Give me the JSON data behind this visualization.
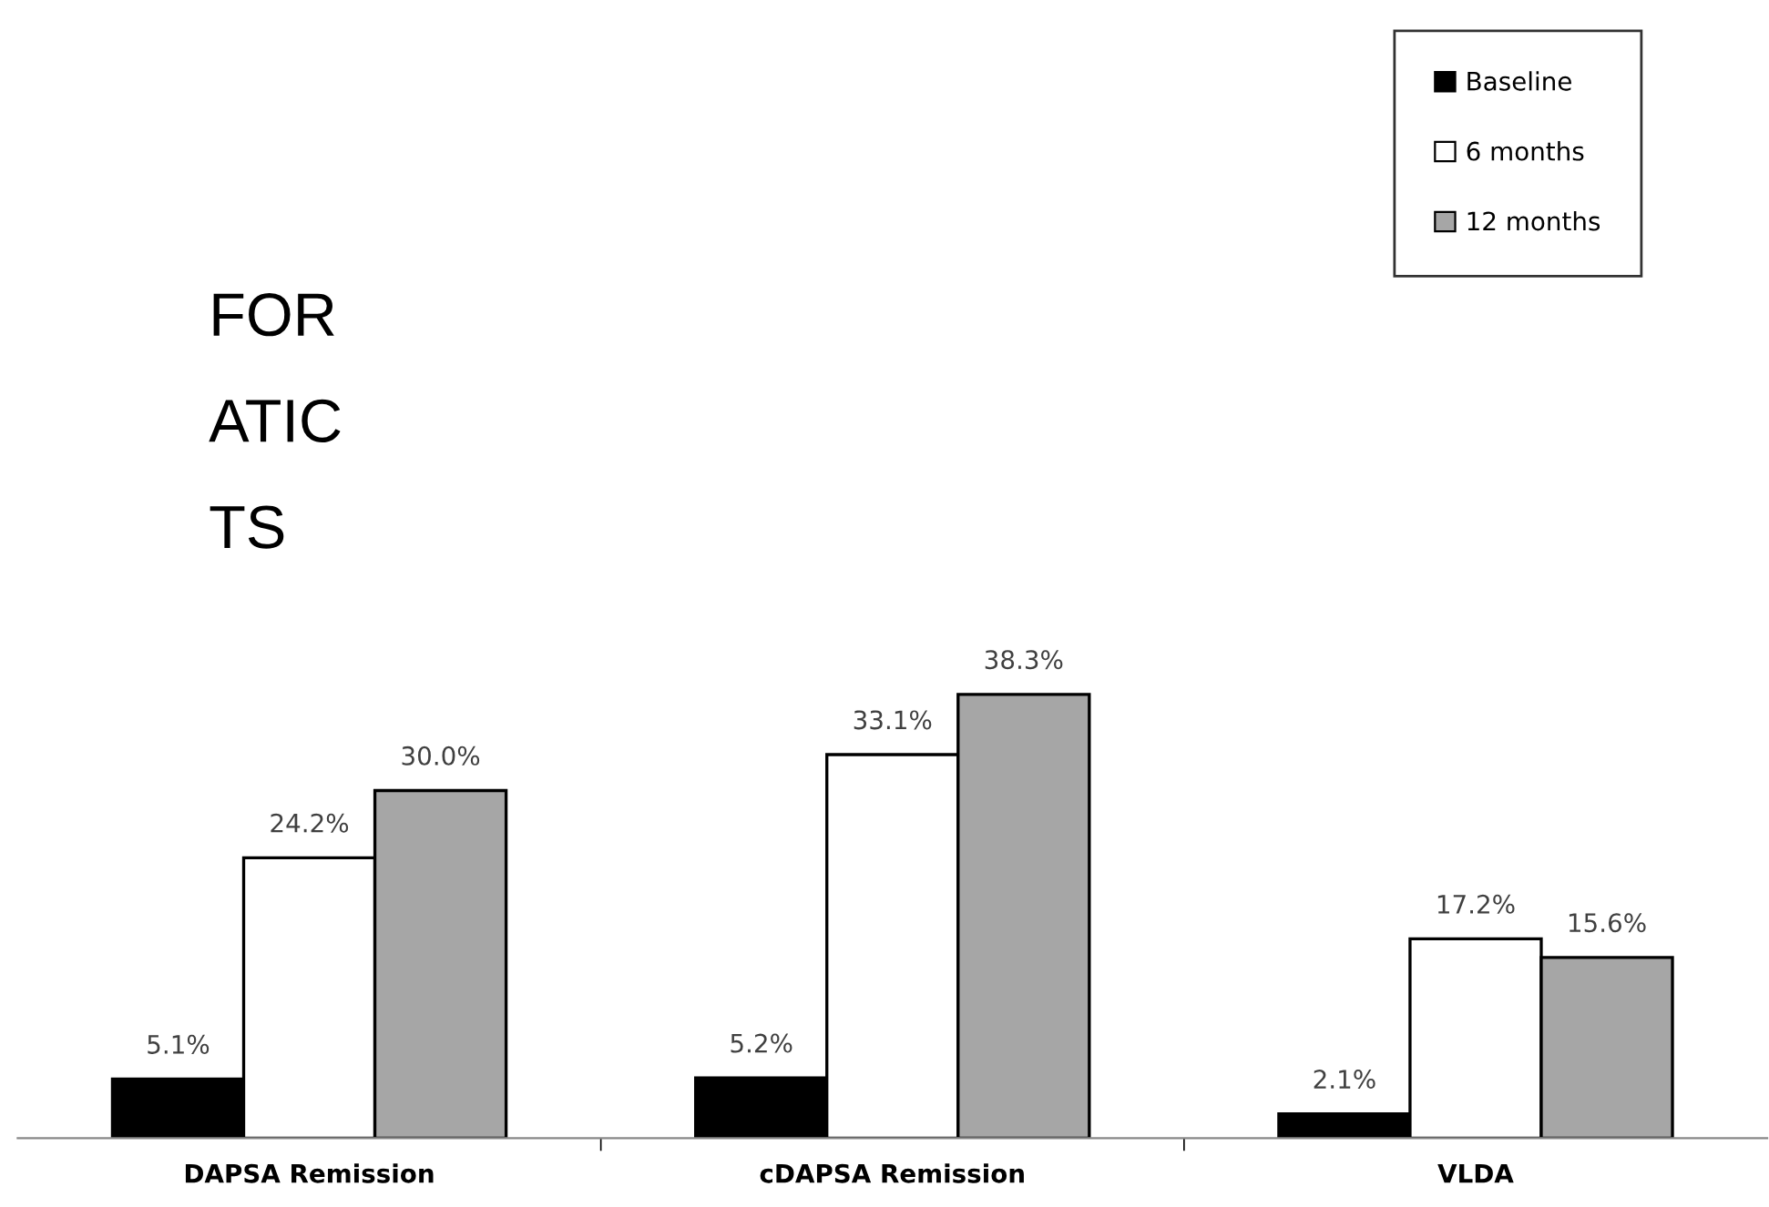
{
  "chart_data": {
    "type": "bar",
    "categories": [
      "DAPSA Remission",
      "cDAPSA Remission",
      "VLDA"
    ],
    "series": [
      {
        "name": "Baseline",
        "color": "#000000",
        "values": [
          5.1,
          5.2,
          2.1
        ],
        "value_labels": [
          "5.1%",
          "5.2%",
          "2.1%"
        ]
      },
      {
        "name": "6 months",
        "color": "#ffffff",
        "values": [
          24.2,
          33.1,
          17.2
        ],
        "value_labels": [
          "24.2%",
          "33.1%",
          "17.2%"
        ]
      },
      {
        "name": "12 months",
        "color": "#a6a6a6",
        "values": [
          30.0,
          38.3,
          15.6
        ],
        "value_labels": [
          "30.0%",
          "38.3%",
          "15.6%"
        ]
      }
    ],
    "annotations": [
      "FOR",
      "ATIC",
      "TS"
    ],
    "legend": "top right",
    "grid": false
  }
}
